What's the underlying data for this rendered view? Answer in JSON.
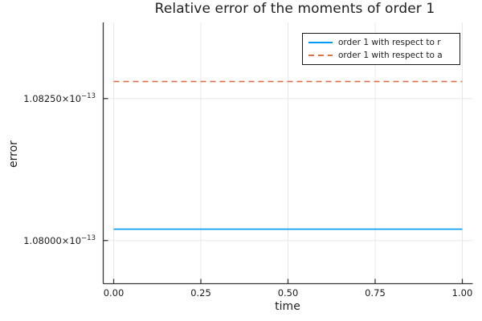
{
  "title": "Relative error of the moments of order 1",
  "axes": {
    "x_label": "time",
    "y_label": "error",
    "x_ticks": [
      {
        "value": 0.0,
        "label": "0.00"
      },
      {
        "value": 0.25,
        "label": "0.25"
      },
      {
        "value": 0.5,
        "label": "0.50"
      },
      {
        "value": 0.75,
        "label": "0.75"
      },
      {
        "value": 1.0,
        "label": "1.00"
      }
    ],
    "y_ticks": [
      {
        "value": 1.0825e-13,
        "base": "1.08250×10",
        "sup": "−13"
      },
      {
        "value": 1.08e-13,
        "base": "1.08000×10",
        "sup": "−13"
      }
    ]
  },
  "legend": {
    "items": [
      {
        "label": "order 1 with respect to r",
        "color": "#009af9",
        "dash": false
      },
      {
        "label": "order 1 with respect to a",
        "color": "#e26e46",
        "dash": true
      }
    ]
  },
  "colors": {
    "series_r": "#009af9",
    "series_a": "#e26e46",
    "grid": "#e8e8e8",
    "axis": "#383838",
    "text": "#1c1c1c",
    "background": "#ffffff"
  },
  "chart_data": {
    "type": "line",
    "title": "Relative error of the moments of order 1",
    "xlabel": "time",
    "ylabel": "error",
    "x": [
      0.0,
      1.0
    ],
    "series": [
      {
        "name": "order 1 with respect to r",
        "values": [
          1.0802e-13,
          1.0802e-13
        ],
        "color": "#009af9",
        "style": "solid"
      },
      {
        "name": "order 1 with respect to a",
        "values": [
          1.0828e-13,
          1.0828e-13
        ],
        "color": "#e26e46",
        "style": "dashed"
      }
    ],
    "xlim": [
      -0.03,
      1.03
    ],
    "ylim": [
      1.07924e-13,
      1.08384e-13
    ],
    "x_tick_values": [
      0.0,
      0.25,
      0.5,
      0.75,
      1.0
    ],
    "y_tick_values": [
      1.08e-13,
      1.0825e-13
    ],
    "grid": true,
    "tick_direction": "in",
    "legend_position": "top-right"
  }
}
